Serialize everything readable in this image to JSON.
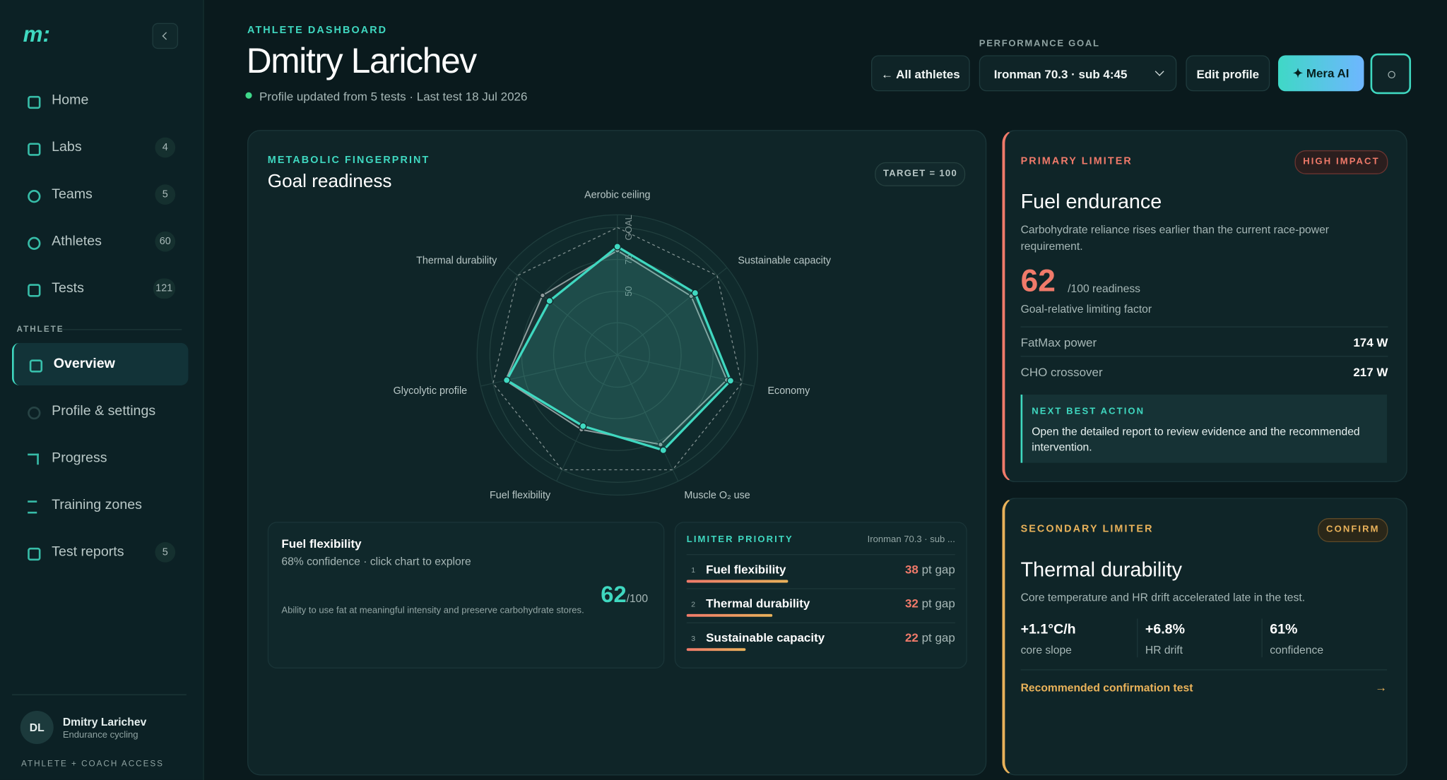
{
  "sidebar": {
    "logo": "m:",
    "nav": [
      {
        "label": "Home"
      },
      {
        "label": "Labs",
        "badge": 4
      },
      {
        "label": "Teams",
        "badge": 5
      },
      {
        "label": "Athletes",
        "badge": 60
      },
      {
        "label": "Tests",
        "badge": 121
      }
    ],
    "section": "ATHLETE",
    "athlete_nav": [
      {
        "label": "Overview"
      },
      {
        "label": "Profile & settings"
      },
      {
        "label": "Progress"
      },
      {
        "label": "Training zones"
      },
      {
        "label": "Test reports",
        "badge": 5
      }
    ],
    "user": {
      "initials": "DL",
      "name": "Dmitry Larichev",
      "sub": "Endurance cycling"
    },
    "access": "ATHLETE + COACH ACCESS"
  },
  "header": {
    "eyebrow": "ATHLETE DASHBOARD",
    "title": "Dmitry Larichev",
    "status": "Profile updated from 5 tests · Last test 18 Jul 2026",
    "goal_label": "PERFORMANCE GOAL",
    "all_athletes": "← All athletes",
    "goal_select": "Ironman 70.3 · sub 4:45",
    "edit_profile": "Edit profile",
    "mera_ai": "✦ Mera AI"
  },
  "readiness_card": {
    "eyebrow": "METABOLIC FINGERPRINT",
    "target_badge": "TARGET = 100"
  },
  "chart_data": {
    "type": "radar",
    "title": "Goal readiness",
    "categories": [
      "Aerobic ceiling",
      "Sustainable capacity",
      "Economy",
      "Muscle O₂ use",
      "Fuel flexibility",
      "Glycolytic profile",
      "Thermal durability"
    ],
    "series": [
      {
        "color": "#8f9c9d",
        "values": [
          82,
          74,
          88,
          78,
          65,
          90,
          75
        ]
      },
      {
        "color": "#3fd8c0",
        "values": [
          85,
          78,
          91,
          83,
          62,
          89,
          68
        ]
      }
    ],
    "rlim": [
      0,
      110
    ],
    "rticks": [
      50,
      75,
      {
        "value": 100,
        "label": "GOAL"
      }
    ],
    "grid": true
  },
  "detail": {
    "title": "Fuel flexibility",
    "sub": "68% confidence · click chart to explore",
    "score": 62,
    "score_max": "/100",
    "description": "Ability to use fat at meaningful intensity and preserve carbohydrate stores."
  },
  "limiter_priority": {
    "title": "LIMITER PRIORITY",
    "goal": "Ironman 70.3 · sub ...",
    "rows": [
      {
        "rank": 1,
        "name": "Fuel flexibility",
        "gap": 38,
        "unit": "pt gap"
      },
      {
        "rank": 2,
        "name": "Thermal durability",
        "gap": 32,
        "unit": "pt gap"
      },
      {
        "rank": 3,
        "name": "Sustainable capacity",
        "gap": 22,
        "unit": "pt gap"
      }
    ]
  },
  "primary": {
    "eyebrow": "PRIMARY LIMITER",
    "badge": "HIGH IMPACT",
    "title": "Fuel endurance",
    "description": "Carbohydrate reliance rises earlier than the current race-power requirement.",
    "score": 62,
    "score_unit": "/100 readiness",
    "score_note": "Goal-relative limiting factor",
    "metrics": [
      {
        "label": "FatMax power",
        "value": "174 W"
      },
      {
        "label": "CHO crossover",
        "value": "217 W"
      }
    ],
    "action_title": "NEXT BEST ACTION",
    "action_text": "Open the detailed report to review evidence and the recommended intervention."
  },
  "secondary": {
    "eyebrow": "SECONDARY LIMITER",
    "badge": "CONFIRM",
    "title": "Thermal durability",
    "description": "Core temperature and HR drift accelerated late in the test.",
    "stats": [
      {
        "value": "+1.1°C/h",
        "label": "core slope"
      },
      {
        "value": "+6.8%",
        "label": "HR drift"
      },
      {
        "value": "61%",
        "label": "confidence"
      }
    ],
    "link": "Recommended confirmation test",
    "link_arrow": "→"
  }
}
